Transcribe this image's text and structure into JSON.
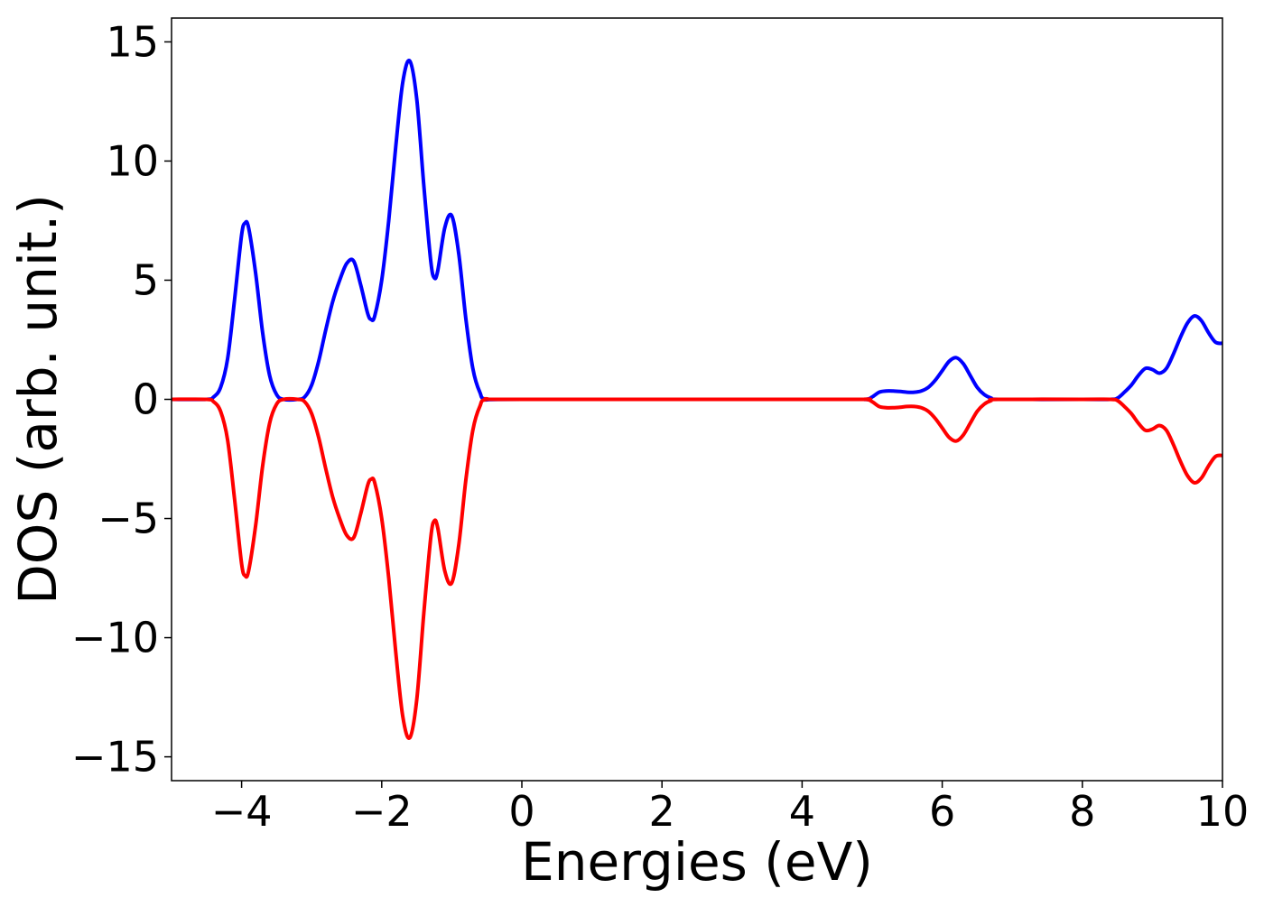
{
  "chart_data": {
    "type": "line",
    "title": "",
    "xlabel": "Energies (eV)",
    "ylabel": "DOS (arb. unit.)",
    "xlim": [
      -5,
      10
    ],
    "ylim": [
      -16,
      16
    ],
    "xticks": [
      -4,
      -2,
      0,
      2,
      4,
      6,
      8,
      10
    ],
    "xtick_labels": [
      "−4",
      "−2",
      "0",
      "2",
      "4",
      "6",
      "8",
      "10"
    ],
    "yticks": [
      -15,
      -10,
      -5,
      0,
      5,
      10,
      15
    ],
    "ytick_labels": [
      "−15",
      "−10",
      "−5",
      "0",
      "5",
      "10",
      "15"
    ],
    "grid": false,
    "legend": null,
    "series": [
      {
        "color": "#0000ff",
        "x": [
          -5.0,
          -4.5,
          -4.4,
          -4.3,
          -4.2,
          -4.1,
          -4.0,
          -3.95,
          -3.9,
          -3.8,
          -3.7,
          -3.6,
          -3.5,
          -3.4,
          -3.2,
          -3.1,
          -3.0,
          -2.9,
          -2.8,
          -2.7,
          -2.6,
          -2.5,
          -2.4,
          -2.3,
          -2.2,
          -2.15,
          -2.1,
          -2.0,
          -1.9,
          -1.8,
          -1.7,
          -1.6,
          -1.5,
          -1.4,
          -1.3,
          -1.25,
          -1.2,
          -1.1,
          -1.0,
          -0.9,
          -0.8,
          -0.7,
          -0.6,
          -0.5,
          0.0,
          4.5,
          4.9,
          5.0,
          5.1,
          5.2,
          5.3,
          5.4,
          5.5,
          5.6,
          5.7,
          5.8,
          5.9,
          6.0,
          6.1,
          6.2,
          6.3,
          6.4,
          6.5,
          6.6,
          6.7,
          6.8,
          8.0,
          8.4,
          8.5,
          8.6,
          8.7,
          8.8,
          8.9,
          9.0,
          9.1,
          9.2,
          9.3,
          9.4,
          9.5,
          9.6,
          9.7,
          9.8,
          9.9,
          10.0
        ],
        "y": [
          0.0,
          0.0,
          0.1,
          0.5,
          1.7,
          4.2,
          6.9,
          7.4,
          7.2,
          5.3,
          2.8,
          1.0,
          0.2,
          0.0,
          0.0,
          0.1,
          0.6,
          1.6,
          2.9,
          4.1,
          5.0,
          5.7,
          5.8,
          4.8,
          3.6,
          3.35,
          3.5,
          5.0,
          7.5,
          10.6,
          13.3,
          14.2,
          12.6,
          9.0,
          5.8,
          5.1,
          5.4,
          7.2,
          7.7,
          6.1,
          3.4,
          1.3,
          0.3,
          0.0,
          0.0,
          0.0,
          0.0,
          0.1,
          0.3,
          0.35,
          0.35,
          0.33,
          0.3,
          0.3,
          0.35,
          0.5,
          0.8,
          1.2,
          1.6,
          1.75,
          1.5,
          1.0,
          0.5,
          0.2,
          0.05,
          0.0,
          0.0,
          0.0,
          0.05,
          0.3,
          0.6,
          1.0,
          1.3,
          1.25,
          1.1,
          1.3,
          1.9,
          2.6,
          3.2,
          3.5,
          3.3,
          2.8,
          2.4,
          2.35
        ]
      },
      {
        "color": "#ff0000",
        "x": [
          -5.0,
          -4.5,
          -4.4,
          -4.3,
          -4.2,
          -4.1,
          -4.0,
          -3.95,
          -3.9,
          -3.8,
          -3.7,
          -3.6,
          -3.5,
          -3.4,
          -3.2,
          -3.1,
          -3.0,
          -2.9,
          -2.8,
          -2.7,
          -2.6,
          -2.5,
          -2.4,
          -2.3,
          -2.2,
          -2.15,
          -2.1,
          -2.0,
          -1.9,
          -1.8,
          -1.7,
          -1.6,
          -1.5,
          -1.4,
          -1.3,
          -1.25,
          -1.2,
          -1.1,
          -1.0,
          -0.9,
          -0.8,
          -0.7,
          -0.6,
          -0.5,
          0.0,
          4.5,
          4.9,
          5.0,
          5.1,
          5.2,
          5.3,
          5.4,
          5.5,
          5.6,
          5.7,
          5.8,
          5.9,
          6.0,
          6.1,
          6.2,
          6.3,
          6.4,
          6.5,
          6.6,
          6.7,
          6.8,
          8.0,
          8.4,
          8.5,
          8.6,
          8.7,
          8.8,
          8.9,
          9.0,
          9.1,
          9.2,
          9.3,
          9.4,
          9.5,
          9.6,
          9.7,
          9.8,
          9.9,
          10.0
        ],
        "y": [
          0.0,
          0.0,
          -0.1,
          -0.5,
          -1.7,
          -4.2,
          -6.9,
          -7.4,
          -7.2,
          -5.3,
          -2.8,
          -1.0,
          -0.2,
          0.0,
          0.0,
          -0.1,
          -0.6,
          -1.6,
          -2.9,
          -4.1,
          -5.0,
          -5.7,
          -5.8,
          -4.8,
          -3.6,
          -3.35,
          -3.5,
          -5.0,
          -7.5,
          -10.6,
          -13.3,
          -14.2,
          -12.6,
          -9.0,
          -5.8,
          -5.1,
          -5.4,
          -7.2,
          -7.7,
          -6.1,
          -3.4,
          -1.3,
          -0.3,
          0.0,
          0.0,
          0.0,
          0.0,
          -0.1,
          -0.3,
          -0.35,
          -0.35,
          -0.33,
          -0.3,
          -0.3,
          -0.35,
          -0.5,
          -0.8,
          -1.2,
          -1.6,
          -1.75,
          -1.5,
          -1.0,
          -0.5,
          -0.2,
          -0.05,
          0.0,
          0.0,
          0.0,
          -0.05,
          -0.3,
          -0.6,
          -1.0,
          -1.3,
          -1.25,
          -1.1,
          -1.3,
          -1.9,
          -2.6,
          -3.2,
          -3.5,
          -3.3,
          -2.8,
          -2.4,
          -2.35
        ]
      }
    ]
  }
}
